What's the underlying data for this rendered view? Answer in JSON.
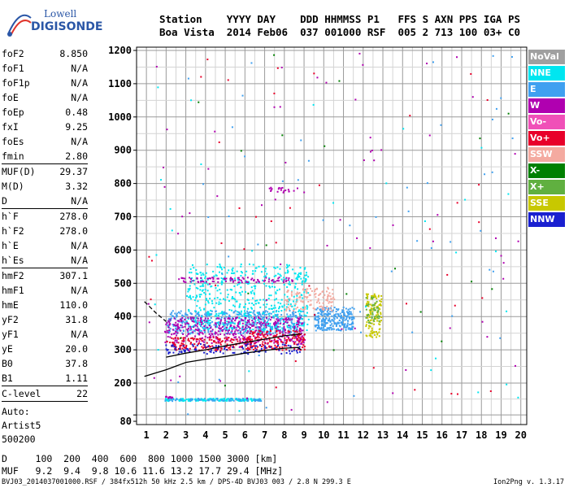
{
  "logo": {
    "line1": "Lowell",
    "line2": "DIGISONDE"
  },
  "header": {
    "row1": "Station    YYYY DAY    DDD HHMMSS P1   FFS S AXN PPS IGA PS",
    "row2": "Boa Vista  2014 Feb06  037 001000 RSF  005 2 713 100 03+ C0"
  },
  "params": {
    "group1": [
      {
        "label": "foF2",
        "value": "8.850"
      },
      {
        "label": "foF1",
        "value": "N/A"
      },
      {
        "label": "foF1p",
        "value": "N/A"
      },
      {
        "label": "foE",
        "value": "N/A"
      },
      {
        "label": "foEp",
        "value": "0.48"
      },
      {
        "label": "fxI",
        "value": "9.25"
      },
      {
        "label": "foEs",
        "value": "N/A"
      },
      {
        "label": "fmin",
        "value": "2.80"
      }
    ],
    "group2": [
      {
        "label": "MUF(D)",
        "value": "29.37"
      },
      {
        "label": "M(D)",
        "value": "3.32"
      },
      {
        "label": "D",
        "value": "N/A"
      }
    ],
    "group3": [
      {
        "label": "h`F",
        "value": "278.0"
      },
      {
        "label": "h`F2",
        "value": "278.0"
      },
      {
        "label": "h`E",
        "value": "N/A"
      },
      {
        "label": "h`Es",
        "value": "N/A"
      }
    ],
    "group4": [
      {
        "label": "hmF2",
        "value": "307.1"
      },
      {
        "label": "hmF1",
        "value": "N/A"
      },
      {
        "label": "hmE",
        "value": "110.0"
      },
      {
        "label": "yF2",
        "value": "31.8"
      },
      {
        "label": "yF1",
        "value": "N/A"
      },
      {
        "label": "yE",
        "value": "20.0"
      },
      {
        "label": "B0",
        "value": "37.8"
      },
      {
        "label": "B1",
        "value": "1.11"
      }
    ],
    "clevel": {
      "label": "C-level",
      "value": "22"
    },
    "auto": [
      "Auto:",
      "Artist5",
      "500200"
    ]
  },
  "legend": [
    {
      "label": "NoVal",
      "color": "#a0a0a0"
    },
    {
      "label": "NNE",
      "color": "#00e6f0"
    },
    {
      "label": "E",
      "color": "#3fa0f0"
    },
    {
      "label": "W",
      "color": "#b000b0"
    },
    {
      "label": "Vo-",
      "color": "#f050b8"
    },
    {
      "label": "Vo+",
      "color": "#e8002a"
    },
    {
      "label": "SSW",
      "color": "#f4aaa0"
    },
    {
      "label": "X-",
      "color": "#008000"
    },
    {
      "label": "X+",
      "color": "#60b040"
    },
    {
      "label": "SSE",
      "color": "#c8c800"
    },
    {
      "label": "NNW",
      "color": "#1a20d0"
    }
  ],
  "footer": {
    "row1": "D     100  200  400  600  800 1000 1500 3000 [km]",
    "row2": "MUF   9.2  9.4  9.8 10.6 11.6 13.2 17.7 29.4 [MHz]"
  },
  "file_line": "BVJ03_2014037001000.RSF / 384fx512h 50 kHz 2.5 km / DPS-4D BVJ03 003 / 2.8 N 299.3 E",
  "version": "Ion2Png v. 1.3.17",
  "chart_data": {
    "type": "scatter",
    "xlim": [
      0.5,
      20.3
    ],
    "ylim": [
      80,
      1200
    ],
    "x_ticks": [
      1,
      2,
      3,
      4,
      5,
      6,
      7,
      8,
      9,
      10,
      11,
      12,
      13,
      14,
      15,
      16,
      17,
      18,
      19,
      20
    ],
    "y_ticks": [
      80,
      100,
      200,
      300,
      400,
      500,
      600,
      700,
      800,
      900,
      1000,
      1100,
      1200
    ],
    "y_tick_labels": [
      "80",
      "",
      "200",
      "300",
      "400",
      "500",
      "600",
      "700",
      "800",
      "900",
      "1000",
      "1100",
      "1200"
    ],
    "grid": true,
    "legend_position": "right",
    "clusters": [
      {
        "series": "E",
        "xr": [
          2.0,
          9.0
        ],
        "yr": [
          350,
          420
        ],
        "n": 520
      },
      {
        "series": "NNE",
        "xr": [
          3.0,
          9.2
        ],
        "yr": [
          360,
          560
        ],
        "n": 520
      },
      {
        "series": "W",
        "xr": [
          1.9,
          9.0
        ],
        "yr": [
          320,
          400
        ],
        "n": 420
      },
      {
        "series": "W",
        "xr": [
          2.6,
          8.5
        ],
        "yr": [
          505,
          520
        ],
        "n": 90
      },
      {
        "series": "Vo+",
        "xr": [
          2.0,
          6.5
        ],
        "yr": [
          300,
          340
        ],
        "n": 160
      },
      {
        "series": "Vo+",
        "xr": [
          6.0,
          9.0
        ],
        "yr": [
          300,
          360
        ],
        "n": 160
      },
      {
        "series": "NNW",
        "xr": [
          1.9,
          8.8
        ],
        "yr": [
          290,
          320
        ],
        "n": 110
      },
      {
        "series": "E",
        "xr": [
          9.5,
          11.5
        ],
        "yr": [
          360,
          430
        ],
        "n": 260
      },
      {
        "series": "SSW",
        "xr": [
          8.0,
          10.5
        ],
        "yr": [
          420,
          490
        ],
        "n": 120
      },
      {
        "series": "SSE",
        "xr": [
          12.1,
          12.9
        ],
        "yr": [
          340,
          470
        ],
        "n": 120
      },
      {
        "series": "X+",
        "xr": [
          12.1,
          12.8
        ],
        "yr": [
          380,
          460
        ],
        "n": 40
      },
      {
        "series": "NNE",
        "xr": [
          1.9,
          6.8
        ],
        "yr": [
          146,
          154
        ],
        "n": 150
      },
      {
        "series": "E",
        "xr": [
          1.9,
          6.8
        ],
        "yr": [
          146,
          154
        ],
        "n": 60
      },
      {
        "series": "W",
        "xr": [
          1.9,
          2.5
        ],
        "yr": [
          155,
          160
        ],
        "n": 10
      },
      {
        "series": "W",
        "xr": [
          7.2,
          9.0
        ],
        "yr": [
          775,
          790
        ],
        "n": 20
      },
      {
        "series": "W",
        "xr": [
          1.0,
          20.0
        ],
        "yr": [
          100,
          1200
        ],
        "n": 70
      },
      {
        "series": "Vo+",
        "xr": [
          1.0,
          20.0
        ],
        "yr": [
          100,
          1200
        ],
        "n": 40
      },
      {
        "series": "E",
        "xr": [
          1.0,
          20.0
        ],
        "yr": [
          100,
          1200
        ],
        "n": 50
      },
      {
        "series": "X-",
        "xr": [
          1.0,
          20.0
        ],
        "yr": [
          100,
          1200
        ],
        "n": 20
      },
      {
        "series": "NNE",
        "xr": [
          1.0,
          20.0
        ],
        "yr": [
          100,
          1200
        ],
        "n": 30
      }
    ],
    "traces": [
      {
        "name": "O-trace",
        "color": "#000000",
        "dash": false,
        "points": [
          [
            0.9,
            220
          ],
          [
            2.0,
            240
          ],
          [
            3.0,
            262
          ],
          [
            4.0,
            272
          ],
          [
            5.0,
            280
          ],
          [
            6.0,
            290
          ],
          [
            7.0,
            298
          ],
          [
            8.0,
            305
          ],
          [
            8.7,
            307
          ],
          [
            8.85,
            300
          ]
        ]
      },
      {
        "name": "guide",
        "color": "#000000",
        "dash": true,
        "points": [
          [
            0.9,
            445
          ],
          [
            1.5,
            410
          ],
          [
            2.0,
            385
          ]
        ]
      },
      {
        "name": "virtual-height",
        "color": "#000000",
        "dash": false,
        "points": [
          [
            2.0,
            278
          ],
          [
            3.0,
            290
          ],
          [
            4.0,
            300
          ],
          [
            5.0,
            312
          ],
          [
            6.0,
            322
          ],
          [
            7.0,
            332
          ],
          [
            8.0,
            342
          ],
          [
            8.85,
            348
          ]
        ]
      }
    ]
  }
}
